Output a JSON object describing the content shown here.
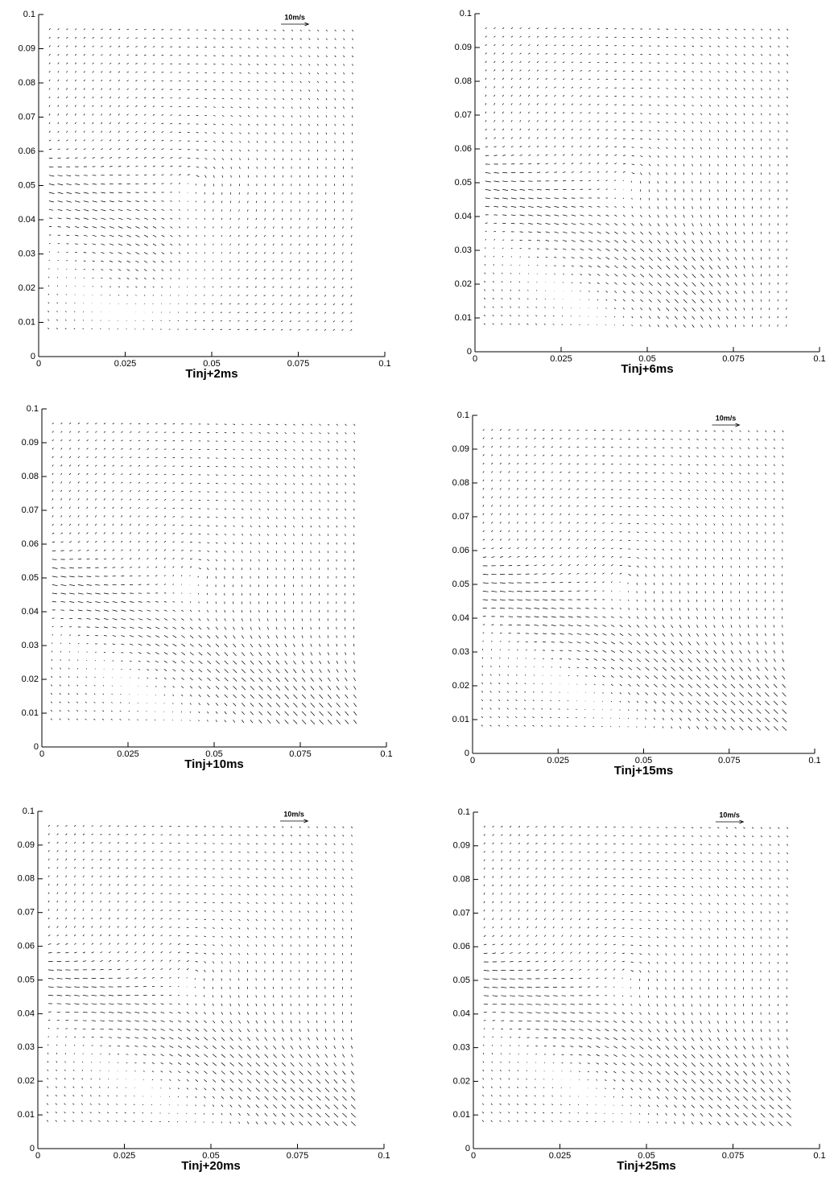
{
  "chart_data": [
    {
      "type": "quiver",
      "xlabel": "Tinj+2ms",
      "reference_label": "10m/s",
      "xlim": [
        0,
        0.1
      ],
      "ylim": [
        0,
        0.1
      ],
      "xticks": [
        0,
        0.025,
        0.05,
        0.075,
        0.1
      ],
      "yticks": [
        0,
        0.01,
        0.02,
        0.03,
        0.04,
        0.05,
        0.06,
        0.07,
        0.08,
        0.09,
        0.1
      ]
    },
    {
      "type": "quiver",
      "xlabel": "Tinj+6ms",
      "xlim": [
        0,
        0.1
      ],
      "ylim": [
        0,
        0.1
      ],
      "xticks": [
        0,
        0.025,
        0.05,
        0.075,
        0.1
      ],
      "yticks": [
        0,
        0.01,
        0.02,
        0.03,
        0.04,
        0.05,
        0.06,
        0.07,
        0.08,
        0.09,
        0.1
      ]
    },
    {
      "type": "quiver",
      "xlabel": "Tinj+10ms",
      "xlim": [
        0,
        0.1
      ],
      "ylim": [
        0,
        0.1
      ],
      "xticks": [
        0,
        0.025,
        0.05,
        0.075,
        0.1
      ],
      "yticks": [
        0,
        0.01,
        0.02,
        0.03,
        0.04,
        0.05,
        0.06,
        0.07,
        0.08,
        0.09,
        0.1
      ]
    },
    {
      "type": "quiver",
      "xlabel": "Tinj+15ms",
      "reference_label": "10m/s",
      "xlim": [
        0,
        0.1
      ],
      "ylim": [
        0,
        0.1
      ],
      "xticks": [
        0,
        0.025,
        0.05,
        0.075,
        0.1
      ],
      "yticks": [
        0,
        0.01,
        0.02,
        0.03,
        0.04,
        0.05,
        0.06,
        0.07,
        0.08,
        0.09,
        0.1
      ]
    },
    {
      "type": "quiver",
      "xlabel": "Tinj+20ms",
      "reference_label": "10m/s",
      "xlim": [
        0,
        0.1
      ],
      "ylim": [
        0,
        0.1
      ],
      "xticks": [
        0,
        0.025,
        0.05,
        0.075,
        0.1
      ],
      "yticks": [
        0,
        0.01,
        0.02,
        0.03,
        0.04,
        0.05,
        0.06,
        0.07,
        0.08,
        0.09,
        0.1
      ]
    },
    {
      "type": "quiver",
      "xlabel": "Tinj+25ms",
      "reference_label": "10m/s",
      "xlim": [
        0,
        0.1
      ],
      "ylim": [
        0,
        0.1
      ],
      "xticks": [
        0,
        0.025,
        0.05,
        0.075,
        0.1
      ],
      "yticks": [
        0,
        0.01,
        0.02,
        0.03,
        0.04,
        0.05,
        0.06,
        0.07,
        0.08,
        0.09,
        0.1
      ]
    }
  ]
}
